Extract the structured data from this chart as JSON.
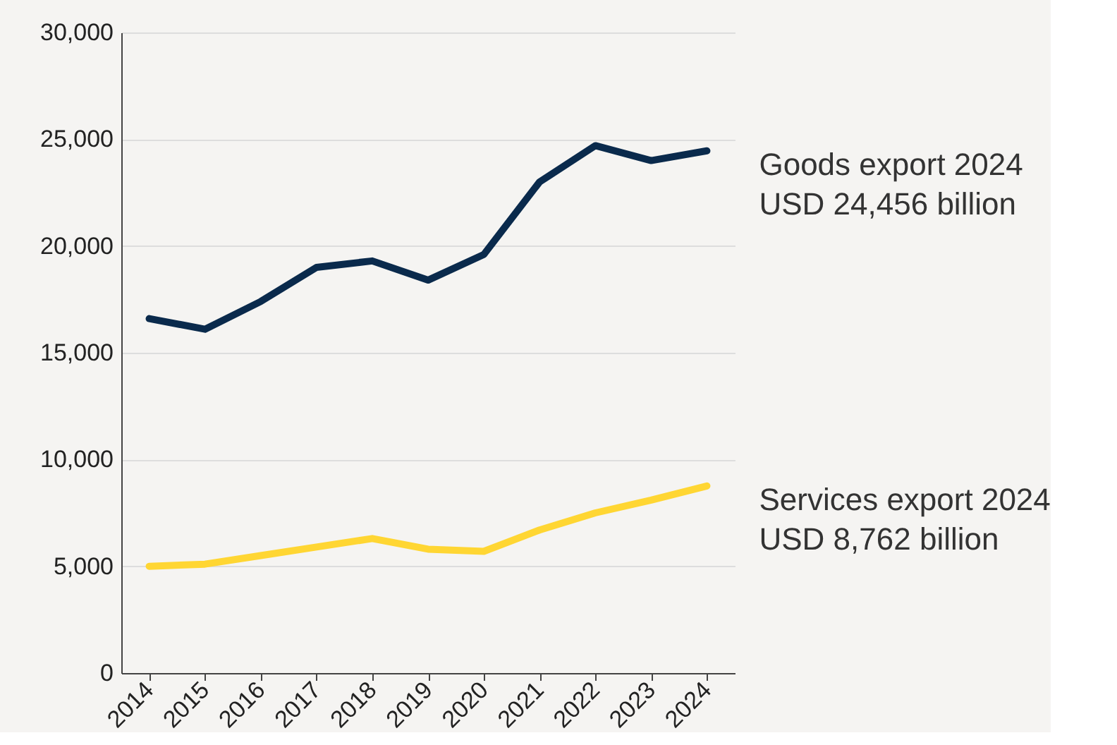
{
  "chart_data": {
    "type": "line",
    "categories": [
      "2014",
      "2015",
      "2016",
      "2017",
      "2018",
      "2019",
      "2020",
      "2021",
      "2022",
      "2023",
      "2024"
    ],
    "series": [
      {
        "color": "#0a2a4c",
        "values": [
          16600,
          16100,
          17400,
          19000,
          19300,
          18400,
          19600,
          23000,
          24700,
          24000,
          24456
        ]
      },
      {
        "color": "#ffd633",
        "values": [
          5000,
          5100,
          5500,
          5900,
          6300,
          5800,
          5700,
          6700,
          7500,
          8100,
          8762
        ]
      }
    ],
    "ylim": [
      0,
      30000
    ],
    "yticks": [
      {
        "value": 0,
        "label": "0"
      },
      {
        "value": 5000,
        "label": "5,000"
      },
      {
        "value": 10000,
        "label": "10,000"
      },
      {
        "value": 15000,
        "label": "15,000"
      },
      {
        "value": 20000,
        "label": "20,000"
      },
      {
        "value": 25000,
        "label": "25,000"
      },
      {
        "value": 30000,
        "label": "30,000"
      }
    ],
    "grid": "y",
    "marker": "none",
    "line_style": "solid",
    "annotations": [
      {
        "text": "Goods export 2024\nUSD 24,456 billion",
        "x": "2024",
        "y": 24456
      },
      {
        "text": "Services export 2024\nUSD 8,762 billion",
        "x": "2024",
        "y": 8762
      }
    ]
  }
}
